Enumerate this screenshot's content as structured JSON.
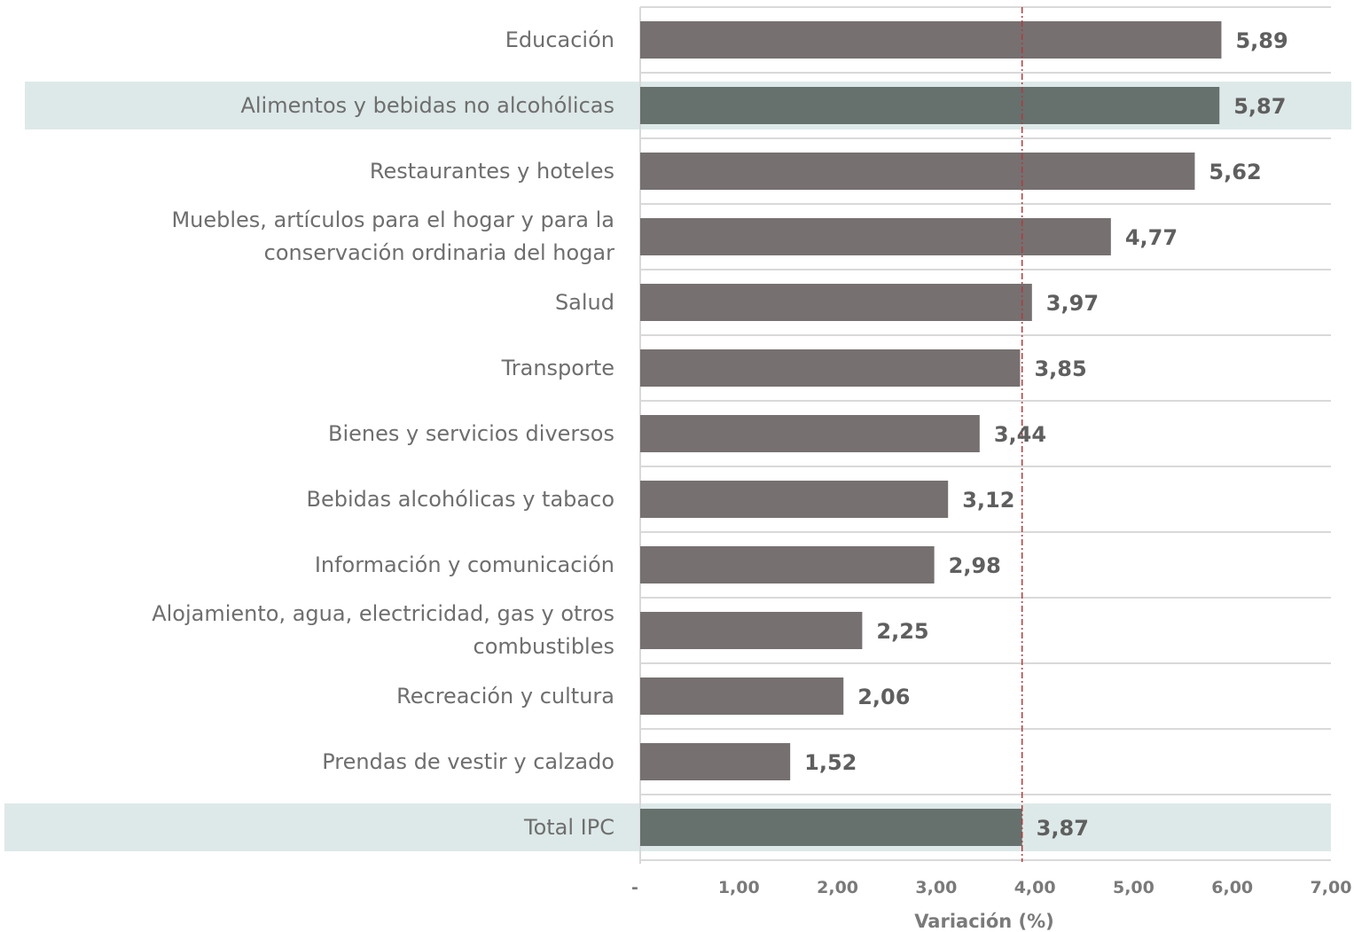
{
  "chart_data": {
    "type": "bar",
    "orientation": "horizontal",
    "categories": [
      "Educación",
      "Alimentos y bebidas no alcohólicas",
      "Restaurantes y hoteles",
      "Muebles, artículos para el hogar y para la conservación ordinaria del hogar",
      "Salud",
      "Transporte",
      "Bienes y servicios diversos",
      "Bebidas alcohólicas y tabaco",
      "Información y comunicación",
      "Alojamiento, agua, electricidad, gas y otros combustibles",
      "Recreación y cultura",
      "Prendas de vestir y calzado",
      "Total IPC"
    ],
    "values": [
      5.89,
      5.87,
      5.62,
      4.77,
      3.97,
      3.85,
      3.44,
      3.12,
      2.98,
      2.25,
      2.06,
      1.52,
      3.87
    ],
    "value_labels": [
      "5,89",
      "5,87",
      "5,62",
      "4,77",
      "3,97",
      "3,85",
      "3,44",
      "3,12",
      "2,98",
      "2,25",
      "2,06",
      "1,52",
      "3,87"
    ],
    "highlighted": [
      "Alimentos y bebidas no alcohólicas",
      "Total IPC"
    ],
    "xlim": [
      0,
      7
    ],
    "xticks": [
      0,
      1,
      2,
      3,
      4,
      5,
      6,
      7
    ],
    "xtick_labels": [
      "-",
      "1,00",
      "2,00",
      "3,00",
      "4,00",
      "5,00",
      "6,00",
      "7,00"
    ],
    "xlabel": "Variación (%)",
    "reference_line": 3.87,
    "grid": true,
    "legend": "none",
    "colors": {
      "bar": "#767070",
      "bar_highlight": "#66706d",
      "highlight_band": "#dde9e8",
      "reference_line": "#b03a3a",
      "grid": "#d9d9d9"
    }
  }
}
